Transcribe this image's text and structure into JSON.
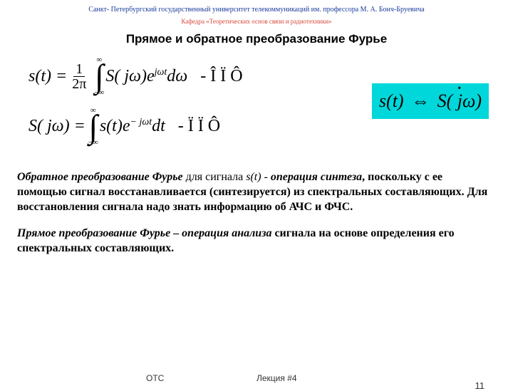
{
  "header": {
    "university": "Санкт- Петербургский государственный университет телекоммуникаций им. профессора М. А. Бонч-Бруевича",
    "department": "Кафедра «Теоретических основ связи и радиотехники»"
  },
  "title": "Прямое и обратное преобразование Фурье",
  "formulas": {
    "inverse": {
      "lhs": "s(t) =",
      "frac_num": "1",
      "frac_den": "2π",
      "int_upper": "∞",
      "int_lower": "−∞",
      "integrand_base": "S( jω)e",
      "integrand_exp": "jωt",
      "dvar": "dω",
      "tag": "-  Î Ï Ô"
    },
    "direct": {
      "lhs": "S( jω) =",
      "int_upper": "∞",
      "int_lower": "−∞",
      "integrand_base": "s(t)e",
      "integrand_exp": "− jωt",
      "dvar": "dt",
      "tag": "-   Ï Ï Ô"
    },
    "highlight": {
      "left": "s(t)",
      "arrow": "⇔",
      "right": "S( jω)"
    }
  },
  "paragraphs": {
    "p1_prefix_bi": "Обратное преобразование Фурье",
    "p1_mid1": " для сигнала ",
    "p1_sig_i": "s(t)",
    "p1_dash": " -  ",
    "p1_op_bi": "операция синтеза",
    "p1_tail_b": ", поскольку с ее помощью сигнал восстанавливается (синтезируется) из спектральных составляющих. Для восстановления сигнала надо знать информацию об АЧС и ФЧС.",
    "p2_prefix_bi": "Прямое преобразование Фурье",
    "p2_dash": " – ",
    "p2_op_bi": "операция анализа",
    "p2_tail_b": " сигнала на основе определения его спектральных составляющих."
  },
  "footer": {
    "left": "ОТС",
    "mid": "Лекция #4",
    "page": "11"
  },
  "style": {
    "uni_color": "#1a3d9c",
    "dept_color": "#d9463a",
    "highlight_bg": "#00d7da",
    "background": "#ffffff",
    "title_fontsize": 17,
    "body_fontsize": 16,
    "math_fontsize": 24
  }
}
